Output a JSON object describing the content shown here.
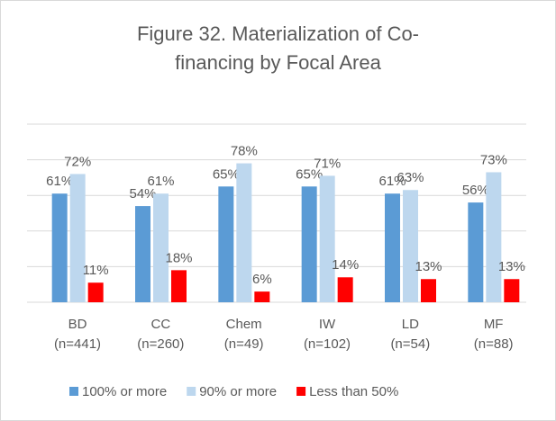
{
  "chart_data": {
    "type": "bar",
    "title": "Figure 32. Materialization of Co-financing by Focal Area",
    "categories": [
      "BD\n(n=441)",
      "CC\n(n=260)",
      "Chem\n(n=49)",
      "IW\n(n=102)",
      "LD\n(n=54)",
      "MF\n(n=88)"
    ],
    "series": [
      {
        "name": "100% or more",
        "color": "#5b9bd5",
        "values": [
          61,
          54,
          65,
          65,
          61,
          56
        ],
        "value_labels": [
          "61%",
          "54%",
          "65%",
          "65%",
          "61%",
          "56%"
        ]
      },
      {
        "name": "90% or more",
        "color": "#bdd7ee",
        "values": [
          72,
          61,
          78,
          71,
          63,
          73
        ],
        "value_labels": [
          "72%",
          "61%",
          "78%",
          "71%",
          "63%",
          "73%"
        ]
      },
      {
        "name": "Less than 50%",
        "color": "#ff0000",
        "values": [
          11,
          18,
          6,
          14,
          13,
          13
        ],
        "value_labels": [
          "11%",
          "18%",
          "6%",
          "14%",
          "13%",
          "13%"
        ]
      }
    ],
    "ylim": [
      0,
      100
    ],
    "yticks": [
      0,
      20,
      40,
      60,
      80,
      100
    ],
    "grid": true,
    "legend": "bottom"
  }
}
